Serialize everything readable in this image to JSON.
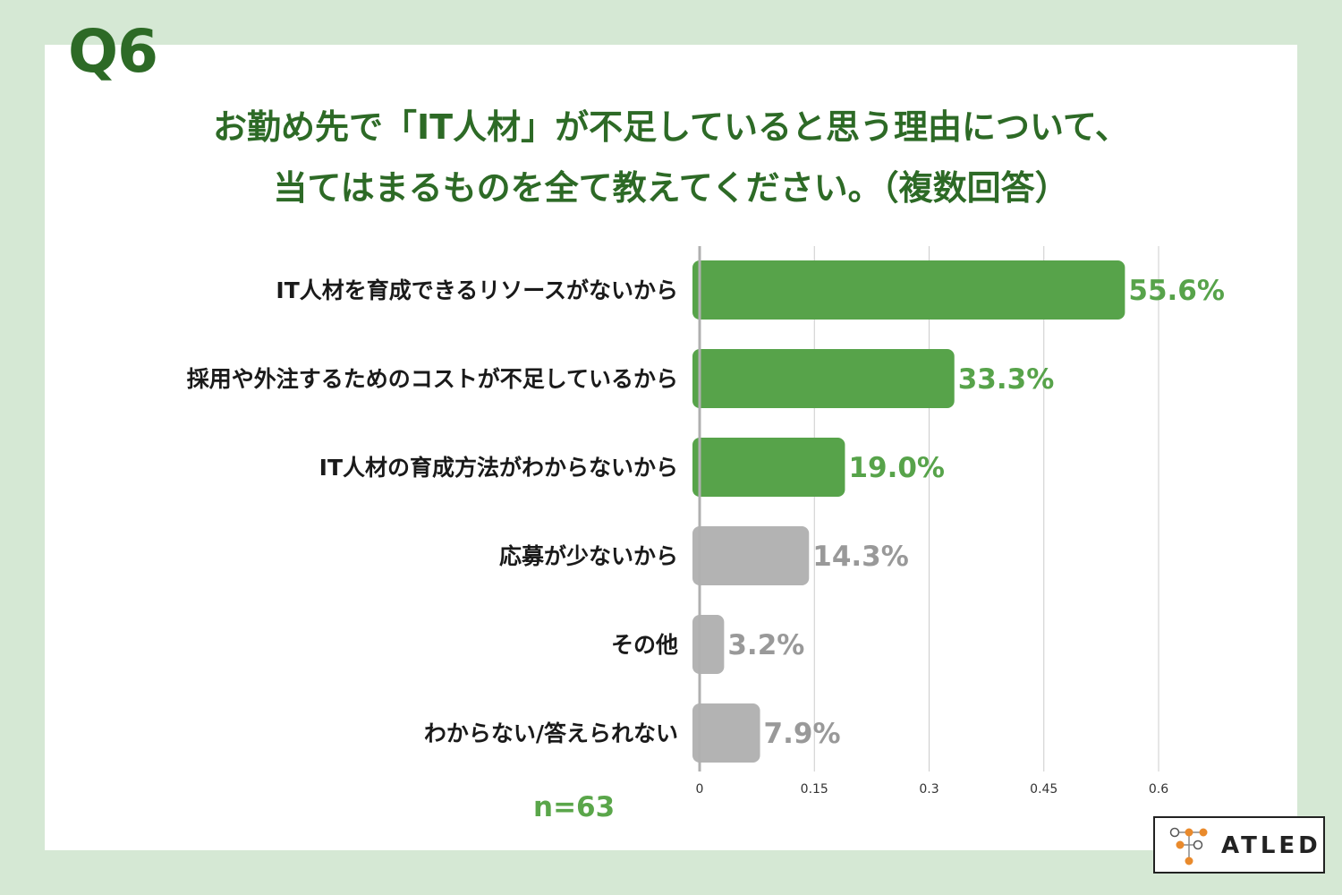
{
  "header": {
    "question_number": "Q6",
    "title_line1": "お勤め先で「IT人材」が不足していると思う理由について、",
    "title_line2": "当てはまるものを全て教えてください。（複数回答）"
  },
  "sample_size": "n=63",
  "logo": {
    "text": "ATLED",
    "icon": "atled-node-icon"
  },
  "colors": {
    "background": "#d5e8d4",
    "panel": "#ffffff",
    "title": "#2d6a26",
    "highlight_bar": "#57a34a",
    "highlight_text": "#57a34a",
    "muted_bar": "#b3b3b3",
    "muted_text": "#999999",
    "grid": "#cccccc"
  },
  "chart_data": {
    "type": "bar",
    "orientation": "horizontal",
    "categories": [
      "IT人材を育成できるリソースがないから",
      "採用や外注するためのコストが不足しているから",
      "IT人材の育成方法がわからないから",
      "応募が少ないから",
      "その他",
      "わからない/答えられない"
    ],
    "values": [
      0.556,
      0.333,
      0.19,
      0.143,
      0.032,
      0.079
    ],
    "value_labels": [
      "55.6%",
      "33.3%",
      "19.0%",
      "14.3%",
      "3.2%",
      "7.9%"
    ],
    "highlighted": [
      true,
      true,
      true,
      false,
      false,
      false
    ],
    "xlim": [
      0,
      0.6
    ],
    "xticks": [
      "0",
      "0.15",
      "0.3",
      "0.45",
      "0.6"
    ],
    "xtick_values": [
      0,
      0.15,
      0.3,
      0.45,
      0.6
    ],
    "grid": true,
    "legend": "none"
  }
}
